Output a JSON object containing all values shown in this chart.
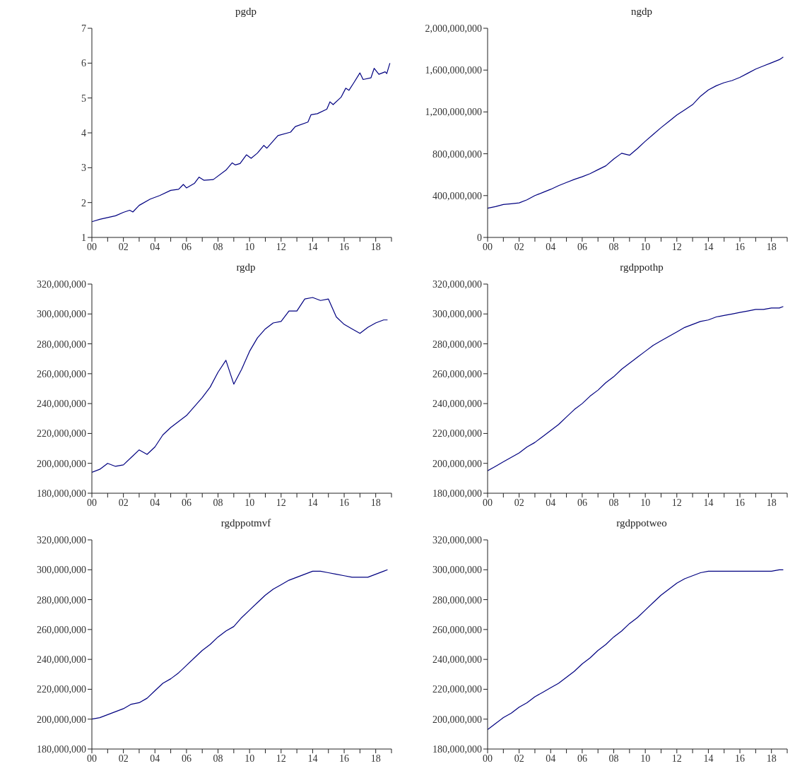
{
  "chart_data": [
    {
      "type": "line",
      "title": "pgdp",
      "color": "#000080",
      "x": [
        2000,
        2000.5,
        2001,
        2001.5,
        2002,
        2002.4,
        2002.6,
        2003,
        2003.7,
        2004.3,
        2005,
        2005.5,
        2005.8,
        2006,
        2006.5,
        2006.8,
        2007.1,
        2007.7,
        2008.5,
        2008.9,
        2009.1,
        2009.4,
        2009.8,
        2010.1,
        2010.5,
        2010.9,
        2011.1,
        2011.8,
        2012.6,
        2012.9,
        2013.7,
        2013.9,
        2014.3,
        2014.9,
        2015.1,
        2015.3,
        2015.8,
        2016.1,
        2016.3,
        2016.6,
        2017,
        2017.2,
        2017.7,
        2017.9,
        2018.2,
        2018.6,
        2018.7,
        2018.9
      ],
      "values": [
        1.45,
        1.52,
        1.57,
        1.62,
        1.72,
        1.78,
        1.73,
        1.92,
        2.1,
        2.2,
        2.35,
        2.38,
        2.52,
        2.42,
        2.55,
        2.73,
        2.64,
        2.66,
        2.93,
        3.14,
        3.08,
        3.12,
        3.37,
        3.27,
        3.42,
        3.64,
        3.56,
        3.92,
        4.02,
        4.18,
        4.31,
        4.52,
        4.55,
        4.68,
        4.89,
        4.81,
        5.02,
        5.28,
        5.22,
        5.43,
        5.72,
        5.53,
        5.58,
        5.85,
        5.68,
        5.75,
        5.7,
        6.0
      ],
      "xlim": [
        2000,
        2019
      ],
      "xticks": [
        {
          "value": 2000,
          "label": "00"
        },
        {
          "value": 2001,
          "label": null
        },
        {
          "value": 2002,
          "label": "02"
        },
        {
          "value": 2003,
          "label": null
        },
        {
          "value": 2004,
          "label": "04"
        },
        {
          "value": 2005,
          "label": null
        },
        {
          "value": 2006,
          "label": "06"
        },
        {
          "value": 2007,
          "label": null
        },
        {
          "value": 2008,
          "label": "08"
        },
        {
          "value": 2009,
          "label": null
        },
        {
          "value": 2010,
          "label": "10"
        },
        {
          "value": 2011,
          "label": null
        },
        {
          "value": 2012,
          "label": "12"
        },
        {
          "value": 2013,
          "label": null
        },
        {
          "value": 2014,
          "label": "14"
        },
        {
          "value": 2015,
          "label": null
        },
        {
          "value": 2016,
          "label": "16"
        },
        {
          "value": 2017,
          "label": null
        },
        {
          "value": 2018,
          "label": "18"
        },
        {
          "value": 2019,
          "label": null
        }
      ],
      "ylim": [
        1,
        7
      ],
      "yticks": [
        1,
        2,
        3,
        4,
        5,
        6,
        7
      ]
    },
    {
      "type": "line",
      "title": "ngdp",
      "color": "#000080",
      "x": [
        2000,
        2000.5,
        2001,
        2001.5,
        2002,
        2002.5,
        2003,
        2003.5,
        2004,
        2004.5,
        2005,
        2005.5,
        2006,
        2006.5,
        2007,
        2007.5,
        2008,
        2008.5,
        2009,
        2009.5,
        2010,
        2010.5,
        2011,
        2011.5,
        2012,
        2012.5,
        2013,
        2013.5,
        2014,
        2014.5,
        2015,
        2015.5,
        2016,
        2016.5,
        2017,
        2017.5,
        2018,
        2018.5,
        2018.75
      ],
      "values": [
        280000000,
        295000000,
        315000000,
        322000000,
        330000000,
        360000000,
        400000000,
        430000000,
        460000000,
        495000000,
        525000000,
        555000000,
        580000000,
        610000000,
        648000000,
        685000000,
        750000000,
        805000000,
        786000000,
        850000000,
        920000000,
        985000000,
        1050000000,
        1110000000,
        1170000000,
        1220000000,
        1270000000,
        1350000000,
        1410000000,
        1450000000,
        1480000000,
        1500000000,
        1530000000,
        1570000000,
        1610000000,
        1640000000,
        1670000000,
        1700000000,
        1725000000
      ],
      "xlim": [
        2000,
        2019
      ],
      "xticks": [
        {
          "value": 2000,
          "label": "00"
        },
        {
          "value": 2001,
          "label": null
        },
        {
          "value": 2002,
          "label": "02"
        },
        {
          "value": 2003,
          "label": null
        },
        {
          "value": 2004,
          "label": "04"
        },
        {
          "value": 2005,
          "label": null
        },
        {
          "value": 2006,
          "label": "06"
        },
        {
          "value": 2007,
          "label": null
        },
        {
          "value": 2008,
          "label": "08"
        },
        {
          "value": 2009,
          "label": null
        },
        {
          "value": 2010,
          "label": "10"
        },
        {
          "value": 2011,
          "label": null
        },
        {
          "value": 2012,
          "label": "12"
        },
        {
          "value": 2013,
          "label": null
        },
        {
          "value": 2014,
          "label": "14"
        },
        {
          "value": 2015,
          "label": null
        },
        {
          "value": 2016,
          "label": "16"
        },
        {
          "value": 2017,
          "label": null
        },
        {
          "value": 2018,
          "label": "18"
        },
        {
          "value": 2019,
          "label": null
        }
      ],
      "ylim": [
        0,
        2000000000
      ],
      "yticks": [
        0,
        {
          "value": 400000000,
          "label": "400,000,000"
        },
        {
          "value": 800000000,
          "label": "800,000,000"
        },
        {
          "value": 1200000000,
          "label": "1,200,000,000"
        },
        {
          "value": 1600000000,
          "label": "1,600,000,000"
        },
        {
          "value": 2000000000,
          "label": "2,000,000,000"
        }
      ]
    },
    {
      "type": "line",
      "title": "rgdp",
      "color": "#000080",
      "x": [
        2000,
        2000.5,
        2001,
        2001.5,
        2002,
        2002.5,
        2003,
        2003.5,
        2004,
        2004.5,
        2005,
        2005.5,
        2006,
        2006.5,
        2007,
        2007.5,
        2008,
        2008.5,
        2009,
        2009.5,
        2010,
        2010.5,
        2011,
        2011.5,
        2012,
        2012.5,
        2013,
        2013.5,
        2014,
        2014.5,
        2015,
        2015.5,
        2016,
        2016.5,
        2017,
        2017.5,
        2018,
        2018.5,
        2018.75
      ],
      "values": [
        194000000,
        196000000,
        200000000,
        198000000,
        199000000,
        204000000,
        209000000,
        206000000,
        211000000,
        219000000,
        224000000,
        228000000,
        232000000,
        238000000,
        244000000,
        251000000,
        261000000,
        269000000,
        253000000,
        263000000,
        275000000,
        284000000,
        290000000,
        294000000,
        295000000,
        302000000,
        302000000,
        310000000,
        311000000,
        309000000,
        310000000,
        298000000,
        293000000,
        290000000,
        287000000,
        291000000,
        294000000,
        296000000,
        296000000
      ],
      "xlim": [
        2000,
        2019
      ],
      "xticks": [
        {
          "value": 2000,
          "label": "00"
        },
        {
          "value": 2001,
          "label": null
        },
        {
          "value": 2002,
          "label": "02"
        },
        {
          "value": 2003,
          "label": null
        },
        {
          "value": 2004,
          "label": "04"
        },
        {
          "value": 2005,
          "label": null
        },
        {
          "value": 2006,
          "label": "06"
        },
        {
          "value": 2007,
          "label": null
        },
        {
          "value": 2008,
          "label": "08"
        },
        {
          "value": 2009,
          "label": null
        },
        {
          "value": 2010,
          "label": "10"
        },
        {
          "value": 2011,
          "label": null
        },
        {
          "value": 2012,
          "label": "12"
        },
        {
          "value": 2013,
          "label": null
        },
        {
          "value": 2014,
          "label": "14"
        },
        {
          "value": 2015,
          "label": null
        },
        {
          "value": 2016,
          "label": "16"
        },
        {
          "value": 2017,
          "label": null
        },
        {
          "value": 2018,
          "label": "18"
        },
        {
          "value": 2019,
          "label": null
        }
      ],
      "ylim": [
        180000000,
        320000000
      ],
      "yticks": [
        {
          "value": 180000000,
          "label": "180,000,000"
        },
        {
          "value": 200000000,
          "label": "200,000,000"
        },
        {
          "value": 220000000,
          "label": "220,000,000"
        },
        {
          "value": 240000000,
          "label": "240,000,000"
        },
        {
          "value": 260000000,
          "label": "260,000,000"
        },
        {
          "value": 280000000,
          "label": "280,000,000"
        },
        {
          "value": 300000000,
          "label": "300,000,000"
        },
        {
          "value": 320000000,
          "label": "320,000,000"
        }
      ]
    },
    {
      "type": "line",
      "title": "rgdppothp",
      "color": "#000080",
      "x": [
        2000,
        2000.5,
        2001,
        2001.5,
        2002,
        2002.5,
        2003,
        2003.5,
        2004,
        2004.5,
        2005,
        2005.5,
        2006,
        2006.5,
        2007,
        2007.5,
        2008,
        2008.5,
        2009,
        2009.5,
        2010,
        2010.5,
        2011,
        2011.5,
        2012,
        2012.5,
        2013,
        2013.5,
        2014,
        2014.5,
        2015,
        2015.5,
        2016,
        2016.5,
        2017,
        2017.5,
        2018,
        2018.5,
        2018.75
      ],
      "values": [
        195000000,
        198000000,
        201000000,
        204000000,
        207000000,
        211000000,
        214000000,
        218000000,
        222000000,
        226000000,
        231000000,
        236000000,
        240000000,
        245000000,
        249000000,
        254000000,
        258000000,
        263000000,
        267000000,
        271000000,
        275000000,
        279000000,
        282000000,
        285000000,
        288000000,
        291000000,
        293000000,
        295000000,
        296000000,
        298000000,
        299000000,
        300000000,
        301000000,
        302000000,
        303000000,
        303000000,
        304000000,
        304000000,
        305000000
      ],
      "xlim": [
        2000,
        2019
      ],
      "xticks": [
        {
          "value": 2000,
          "label": "00"
        },
        {
          "value": 2001,
          "label": null
        },
        {
          "value": 2002,
          "label": "02"
        },
        {
          "value": 2003,
          "label": null
        },
        {
          "value": 2004,
          "label": "04"
        },
        {
          "value": 2005,
          "label": null
        },
        {
          "value": 2006,
          "label": "06"
        },
        {
          "value": 2007,
          "label": null
        },
        {
          "value": 2008,
          "label": "08"
        },
        {
          "value": 2009,
          "label": null
        },
        {
          "value": 2010,
          "label": "10"
        },
        {
          "value": 2011,
          "label": null
        },
        {
          "value": 2012,
          "label": "12"
        },
        {
          "value": 2013,
          "label": null
        },
        {
          "value": 2014,
          "label": "14"
        },
        {
          "value": 2015,
          "label": null
        },
        {
          "value": 2016,
          "label": "16"
        },
        {
          "value": 2017,
          "label": null
        },
        {
          "value": 2018,
          "label": "18"
        },
        {
          "value": 2019,
          "label": null
        }
      ],
      "ylim": [
        180000000,
        320000000
      ],
      "yticks": [
        {
          "value": 180000000,
          "label": "180,000,000"
        },
        {
          "value": 200000000,
          "label": "200,000,000"
        },
        {
          "value": 220000000,
          "label": "220,000,000"
        },
        {
          "value": 240000000,
          "label": "240,000,000"
        },
        {
          "value": 260000000,
          "label": "260,000,000"
        },
        {
          "value": 280000000,
          "label": "280,000,000"
        },
        {
          "value": 300000000,
          "label": "300,000,000"
        },
        {
          "value": 320000000,
          "label": "320,000,000"
        }
      ]
    },
    {
      "type": "line",
      "title": "rgdppotmvf",
      "color": "#000080",
      "x": [
        2000,
        2000.5,
        2001,
        2001.5,
        2002,
        2002.5,
        2003,
        2003.5,
        2004,
        2004.5,
        2005,
        2005.5,
        2006,
        2006.5,
        2007,
        2007.5,
        2008,
        2008.5,
        2009,
        2009.5,
        2010,
        2010.5,
        2011,
        2011.5,
        2012,
        2012.5,
        2013,
        2013.5,
        2014,
        2014.5,
        2015,
        2015.5,
        2016,
        2016.5,
        2017,
        2017.5,
        2018,
        2018.5,
        2018.75
      ],
      "values": [
        200000000,
        201000000,
        203000000,
        205000000,
        207000000,
        210000000,
        211000000,
        214000000,
        219000000,
        224000000,
        227000000,
        231000000,
        236000000,
        241000000,
        246000000,
        250000000,
        255000000,
        259000000,
        262000000,
        268000000,
        273000000,
        278000000,
        283000000,
        287000000,
        290000000,
        293000000,
        295000000,
        297000000,
        299000000,
        299000000,
        298000000,
        297000000,
        296000000,
        295000000,
        295000000,
        295000000,
        297000000,
        299000000,
        300000000
      ],
      "xlim": [
        2000,
        2019
      ],
      "xticks": [
        {
          "value": 2000,
          "label": "00"
        },
        {
          "value": 2001,
          "label": null
        },
        {
          "value": 2002,
          "label": "02"
        },
        {
          "value": 2003,
          "label": null
        },
        {
          "value": 2004,
          "label": "04"
        },
        {
          "value": 2005,
          "label": null
        },
        {
          "value": 2006,
          "label": "06"
        },
        {
          "value": 2007,
          "label": null
        },
        {
          "value": 2008,
          "label": "08"
        },
        {
          "value": 2009,
          "label": null
        },
        {
          "value": 2010,
          "label": "10"
        },
        {
          "value": 2011,
          "label": null
        },
        {
          "value": 2012,
          "label": "12"
        },
        {
          "value": 2013,
          "label": null
        },
        {
          "value": 2014,
          "label": "14"
        },
        {
          "value": 2015,
          "label": null
        },
        {
          "value": 2016,
          "label": "16"
        },
        {
          "value": 2017,
          "label": null
        },
        {
          "value": 2018,
          "label": "18"
        },
        {
          "value": 2019,
          "label": null
        }
      ],
      "ylim": [
        180000000,
        320000000
      ],
      "yticks": [
        {
          "value": 180000000,
          "label": "180,000,000"
        },
        {
          "value": 200000000,
          "label": "200,000,000"
        },
        {
          "value": 220000000,
          "label": "220,000,000"
        },
        {
          "value": 240000000,
          "label": "240,000,000"
        },
        {
          "value": 260000000,
          "label": "260,000,000"
        },
        {
          "value": 280000000,
          "label": "280,000,000"
        },
        {
          "value": 300000000,
          "label": "300,000,000"
        },
        {
          "value": 320000000,
          "label": "320,000,000"
        }
      ]
    },
    {
      "type": "line",
      "title": "rgdppotweo",
      "color": "#000080",
      "x": [
        2000,
        2000.5,
        2001,
        2001.5,
        2002,
        2002.5,
        2003,
        2003.5,
        2004,
        2004.5,
        2005,
        2005.5,
        2006,
        2006.5,
        2007,
        2007.5,
        2008,
        2008.5,
        2009,
        2009.5,
        2010,
        2010.5,
        2011,
        2011.5,
        2012,
        2012.5,
        2013,
        2013.5,
        2014,
        2014.5,
        2015,
        2015.5,
        2016,
        2016.5,
        2017,
        2017.5,
        2018,
        2018.5,
        2018.75
      ],
      "values": [
        193000000,
        197000000,
        201000000,
        204000000,
        208000000,
        211000000,
        215000000,
        218000000,
        221000000,
        224000000,
        228000000,
        232000000,
        237000000,
        241000000,
        246000000,
        250000000,
        255000000,
        259000000,
        264000000,
        268000000,
        273000000,
        278000000,
        283000000,
        287000000,
        291000000,
        294000000,
        296000000,
        298000000,
        299000000,
        299000000,
        299000000,
        299000000,
        299000000,
        299000000,
        299000000,
        299000000,
        299000000,
        300000000,
        300000000
      ],
      "xlim": [
        2000,
        2019
      ],
      "xticks": [
        {
          "value": 2000,
          "label": "00"
        },
        {
          "value": 2001,
          "label": null
        },
        {
          "value": 2002,
          "label": "02"
        },
        {
          "value": 2003,
          "label": null
        },
        {
          "value": 2004,
          "label": "04"
        },
        {
          "value": 2005,
          "label": null
        },
        {
          "value": 2006,
          "label": "06"
        },
        {
          "value": 2007,
          "label": null
        },
        {
          "value": 2008,
          "label": "08"
        },
        {
          "value": 2009,
          "label": null
        },
        {
          "value": 2010,
          "label": "10"
        },
        {
          "value": 2011,
          "label": null
        },
        {
          "value": 2012,
          "label": "12"
        },
        {
          "value": 2013,
          "label": null
        },
        {
          "value": 2014,
          "label": "14"
        },
        {
          "value": 2015,
          "label": null
        },
        {
          "value": 2016,
          "label": "16"
        },
        {
          "value": 2017,
          "label": null
        },
        {
          "value": 2018,
          "label": "18"
        },
        {
          "value": 2019,
          "label": null
        }
      ],
      "ylim": [
        180000000,
        320000000
      ],
      "yticks": [
        {
          "value": 180000000,
          "label": "180,000,000"
        },
        {
          "value": 200000000,
          "label": "200,000,000"
        },
        {
          "value": 220000000,
          "label": "220,000,000"
        },
        {
          "value": 240000000,
          "label": "240,000,000"
        },
        {
          "value": 260000000,
          "label": "260,000,000"
        },
        {
          "value": 280000000,
          "label": "280,000,000"
        },
        {
          "value": 300000000,
          "label": "300,000,000"
        },
        {
          "value": 320000000,
          "label": "320,000,000"
        }
      ]
    }
  ]
}
